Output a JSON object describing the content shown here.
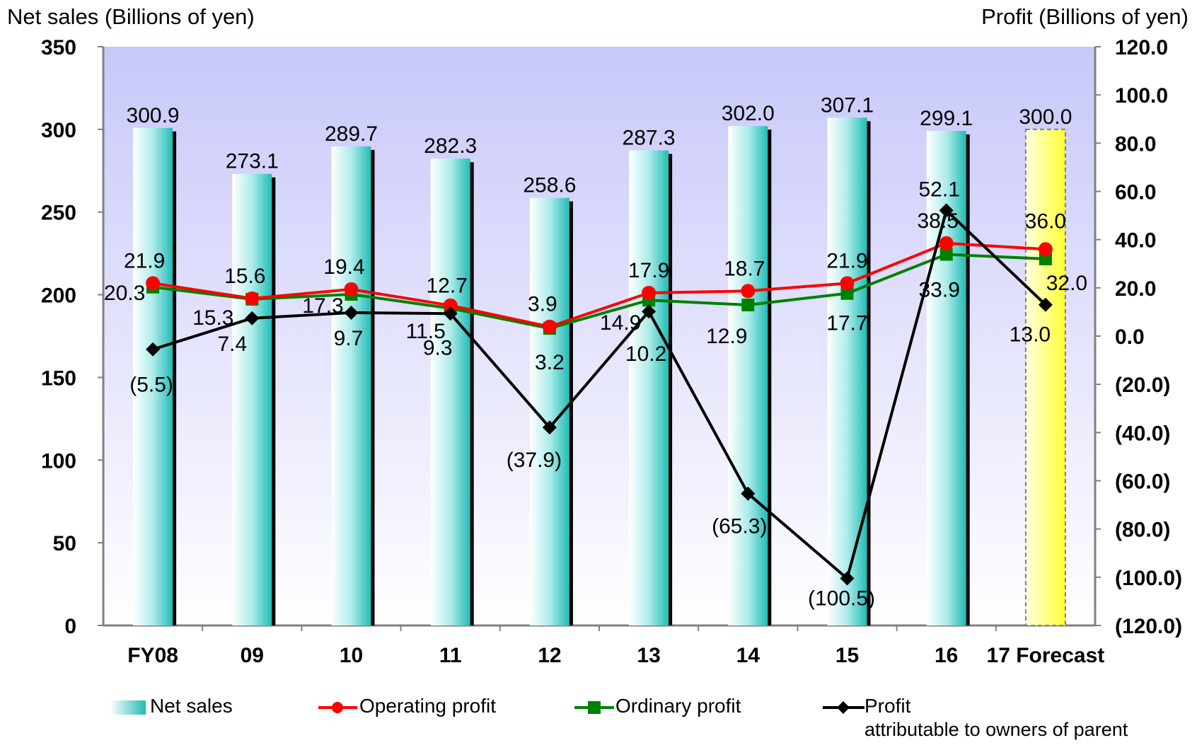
{
  "chart_data": {
    "type": "bar",
    "y_left_label": "Net sales (Billions of yen)",
    "y_right_label": "Profit (Billions of yen)",
    "categories": [
      "FY08",
      "09",
      "10",
      "11",
      "12",
      "13",
      "14",
      "15",
      "16",
      "17 Forecast"
    ],
    "y_left_ticks": [
      "0",
      "50",
      "100",
      "150",
      "200",
      "250",
      "300",
      "350"
    ],
    "y_left_range": [
      0,
      350
    ],
    "y_right_ticks": [
      "(120.0)",
      "(100.0)",
      "(80.0)",
      "(60.0)",
      "(40.0)",
      "(20.0)",
      "0.0",
      "20.0",
      "40.0",
      "60.0",
      "80.0",
      "100.0",
      "120.0"
    ],
    "y_right_range": [
      -120,
      120
    ],
    "grid": false,
    "legend_position": "bottom",
    "series": [
      {
        "name": "Net sales",
        "type": "bar",
        "axis": "left",
        "values": [
          300.9,
          273.1,
          289.7,
          282.3,
          258.6,
          287.3,
          302.0,
          307.1,
          299.1,
          300.0
        ],
        "labels": [
          "300.9",
          "273.1",
          "289.7",
          "282.3",
          "258.6",
          "287.3",
          "302.0",
          "307.1",
          "299.1",
          "300.0"
        ],
        "color": "#33c6c0",
        "forecast_color": "#ffff33"
      },
      {
        "name": "Operating profit",
        "type": "line",
        "axis": "right",
        "values": [
          21.9,
          15.6,
          19.4,
          12.7,
          3.9,
          17.9,
          18.7,
          21.9,
          38.5,
          36.0
        ],
        "labels": [
          "21.9",
          "15.6",
          "19.4",
          "12.7",
          "3.9",
          "17.9",
          "18.7",
          "21.9",
          "38.5",
          "36.0"
        ],
        "color": "#ff0000",
        "marker": "circle"
      },
      {
        "name": "Ordinary profit",
        "type": "line",
        "axis": "right",
        "values": [
          20.3,
          15.3,
          17.3,
          11.5,
          3.2,
          14.9,
          12.9,
          17.7,
          33.9,
          32.0
        ],
        "labels": [
          "20.3",
          "15.3",
          "17.3",
          "11.5",
          "3.2",
          "14.9",
          "12.9",
          "17.7",
          "33.9",
          "32.0"
        ],
        "color": "#008000",
        "marker": "square"
      },
      {
        "name": "Profit attributable to owners of parent",
        "legend_lines": [
          "Profit",
          "attributable to owners of parent"
        ],
        "type": "line",
        "axis": "right",
        "values": [
          -5.5,
          7.4,
          9.7,
          9.3,
          -37.9,
          10.2,
          -65.3,
          -100.5,
          52.1,
          13.0
        ],
        "labels": [
          "(5.5)",
          "7.4",
          "9.7",
          "9.3",
          "(37.9)",
          "10.2",
          "(65.3)",
          "(100.5)",
          "52.1",
          "13.0"
        ],
        "color": "#000000",
        "marker": "diamond"
      }
    ]
  }
}
